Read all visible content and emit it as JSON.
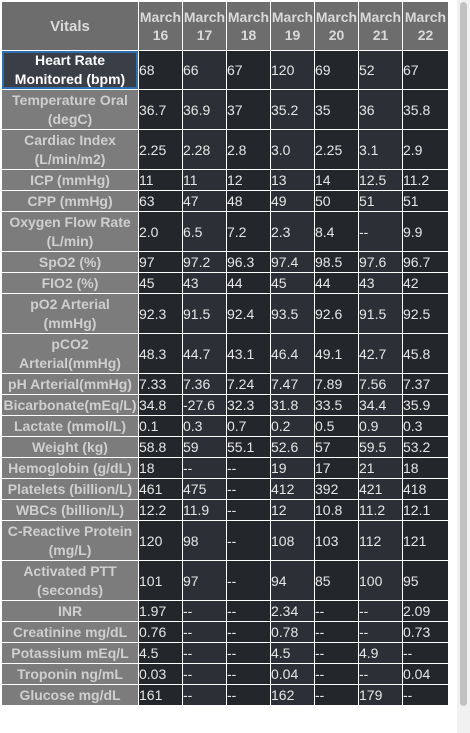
{
  "table": {
    "corner_label": "Vitals",
    "dates": [
      {
        "month": "March",
        "day": "16"
      },
      {
        "month": "March",
        "day": "17"
      },
      {
        "month": "March",
        "day": "18"
      },
      {
        "month": "March",
        "day": "19"
      },
      {
        "month": "March",
        "day": "20"
      },
      {
        "month": "March",
        "day": "21"
      },
      {
        "month": "March",
        "day": "22"
      }
    ],
    "rows": [
      {
        "label": "Heart Rate Monitored (bpm)",
        "values": [
          "68",
          "66",
          "67",
          "120",
          "69",
          "52",
          "67"
        ],
        "selected": true
      },
      {
        "label": "Temperature Oral (degC)",
        "values": [
          "36.7",
          "36.9",
          "37",
          "35.2",
          "35",
          "36",
          "35.8"
        ]
      },
      {
        "label": "Cardiac Index (L/min/m2)",
        "values": [
          "2.25",
          "2.28",
          "2.8",
          "3.0",
          "2.25",
          "3.1",
          "2.9"
        ]
      },
      {
        "label": "ICP (mmHg)",
        "values": [
          "11",
          "11",
          "12",
          "13",
          "14",
          "12.5",
          "11.2"
        ]
      },
      {
        "label": "CPP (mmHg)",
        "values": [
          "63",
          "47",
          "48",
          "49",
          "50",
          "51",
          "51"
        ]
      },
      {
        "label": "Oxygen Flow Rate (L/min)",
        "values": [
          "2.0",
          "6.5",
          "7.2",
          "2.3",
          "8.4",
          "--",
          "9.9"
        ]
      },
      {
        "label": "SpO2 (%)",
        "values": [
          "97",
          "97.2",
          "96.3",
          "97.4",
          "98.5",
          "97.6",
          "96.7"
        ]
      },
      {
        "label": "FIO2 (%)",
        "values": [
          "45",
          "43",
          "44",
          "45",
          "44",
          "43",
          "42"
        ]
      },
      {
        "label": "pO2 Arterial (mmHg)",
        "values": [
          "92.3",
          "91.5",
          "92.4",
          "93.5",
          "92.6",
          "91.5",
          "92.5"
        ]
      },
      {
        "label": "pCO2 Arterial(mmHg)",
        "values": [
          "48.3",
          "44.7",
          "43.1",
          "46.4",
          "49.1",
          "42.7",
          "45.8"
        ]
      },
      {
        "label": "pH Arterial(mmHg)",
        "values": [
          "7.33",
          "7.36",
          "7.24",
          "7.47",
          "7.89",
          "7.56",
          "7.37"
        ]
      },
      {
        "label": "Bicarbonate(mEq/L)",
        "values": [
          "34.8",
          "-27.6",
          "32.3",
          "31.8",
          "33.5",
          "34.4",
          "35.9"
        ]
      },
      {
        "label": "Lactate (mmol/L)",
        "values": [
          "0.1",
          "0.3",
          "0.7",
          "0.2",
          "0.5",
          "0.9",
          "0.3"
        ]
      },
      {
        "label": "Weight (kg)",
        "values": [
          "58.8",
          "59",
          "55.1",
          "52.6",
          "57",
          "59.5",
          "53.2"
        ]
      },
      {
        "label": "Hemoglobin (g/dL)",
        "values": [
          "18",
          "--",
          "--",
          "19",
          "17",
          "21",
          "18"
        ]
      },
      {
        "label": "Platelets (billion/L)",
        "values": [
          "461",
          "475",
          "--",
          "412",
          "392",
          "421",
          "418"
        ]
      },
      {
        "label": "WBCs (billion/L)",
        "values": [
          "12.2",
          "11.9",
          "--",
          "12",
          "10.8",
          "11.2",
          "12.1"
        ]
      },
      {
        "label": "C-Reactive Protein (mg/L)",
        "values": [
          "120",
          "98",
          "--",
          "108",
          "103",
          "112",
          "121"
        ]
      },
      {
        "label": "Activated PTT (seconds)",
        "values": [
          "101",
          "97",
          "--",
          "94",
          "85",
          "100",
          "95"
        ]
      },
      {
        "label": "INR",
        "values": [
          "1.97",
          "--",
          "--",
          "2.34",
          "--",
          "--",
          "2.09"
        ]
      },
      {
        "label": "Creatinine mg/dL",
        "values": [
          "0.76",
          "--",
          "--",
          "0.78",
          "--",
          "--",
          "0.73"
        ]
      },
      {
        "label": "Potassium mEq/L",
        "values": [
          "4.5",
          "--",
          "--",
          "4.5",
          "--",
          "4.9",
          "--"
        ]
      },
      {
        "label": "Troponin ng/mL",
        "values": [
          "0.03",
          "--",
          "--",
          "0.04",
          "--",
          "--",
          "0.04"
        ]
      },
      {
        "label": "Glucose mg/dL",
        "values": [
          "161",
          "--",
          "--",
          "162",
          "--",
          "179",
          "--"
        ]
      }
    ]
  }
}
